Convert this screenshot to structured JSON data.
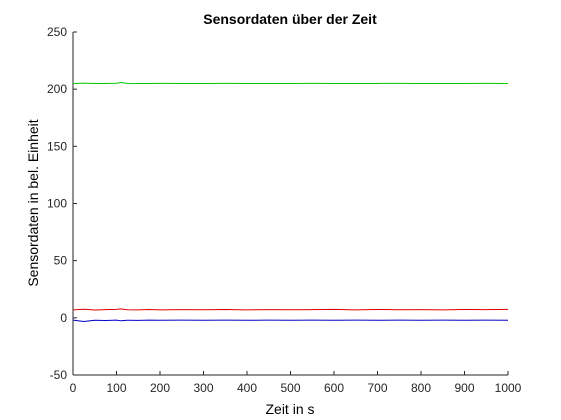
{
  "chart_data": {
    "type": "line",
    "title": "Sensordaten über der Zeit",
    "xlabel": "Zeit in s",
    "ylabel": "Sensordaten in bel. Einheit",
    "xlim": [
      0,
      1000
    ],
    "ylim": [
      -50,
      250
    ],
    "xticks": [
      0,
      100,
      200,
      300,
      400,
      500,
      600,
      700,
      800,
      900,
      1000
    ],
    "yticks": [
      -50,
      0,
      50,
      100,
      150,
      200,
      250
    ],
    "xtick_labels": [
      "0",
      "100",
      "200",
      "300",
      "400",
      "500",
      "600",
      "700",
      "800",
      "900",
      "1000"
    ],
    "ytick_labels": [
      "-50",
      "0",
      "50",
      "100",
      "150",
      "200",
      "250"
    ],
    "grid": false,
    "legend": "none",
    "x": [
      0,
      25,
      50,
      75,
      100,
      110,
      125,
      150,
      175,
      200,
      250,
      300,
      350,
      400,
      450,
      500,
      550,
      600,
      650,
      700,
      750,
      800,
      850,
      900,
      950,
      1000
    ],
    "series": [
      {
        "color": "#00c800",
        "values": [
          204.8,
          205.3,
          204.9,
          205.0,
          205.2,
          205.8,
          205.1,
          205.0,
          205.0,
          205.1,
          205.0,
          205.0,
          205.1,
          205.0,
          205.0,
          205.0,
          205.1,
          205.0,
          205.0,
          205.0,
          205.1,
          205.0,
          205.0,
          205.0,
          205.1,
          205.0
        ]
      },
      {
        "color": "#e00000",
        "values": [
          7.0,
          7.5,
          6.8,
          7.2,
          7.4,
          7.8,
          7.1,
          7.0,
          7.3,
          7.0,
          7.2,
          7.1,
          7.3,
          7.0,
          7.2,
          7.1,
          7.2,
          7.4,
          7.0,
          7.3,
          7.1,
          7.2,
          7.0,
          7.3,
          7.2,
          7.4
        ]
      },
      {
        "color": "#0000c8",
        "values": [
          -2.0,
          -3.2,
          -2.1,
          -2.3,
          -2.0,
          -2.6,
          -2.1,
          -2.2,
          -2.0,
          -2.1,
          -2.0,
          -2.1,
          -2.0,
          -2.1,
          -2.0,
          -2.1,
          -2.0,
          -2.1,
          -2.0,
          -2.1,
          -2.0,
          -2.1,
          -2.0,
          -2.1,
          -2.0,
          -2.1
        ]
      }
    ]
  }
}
